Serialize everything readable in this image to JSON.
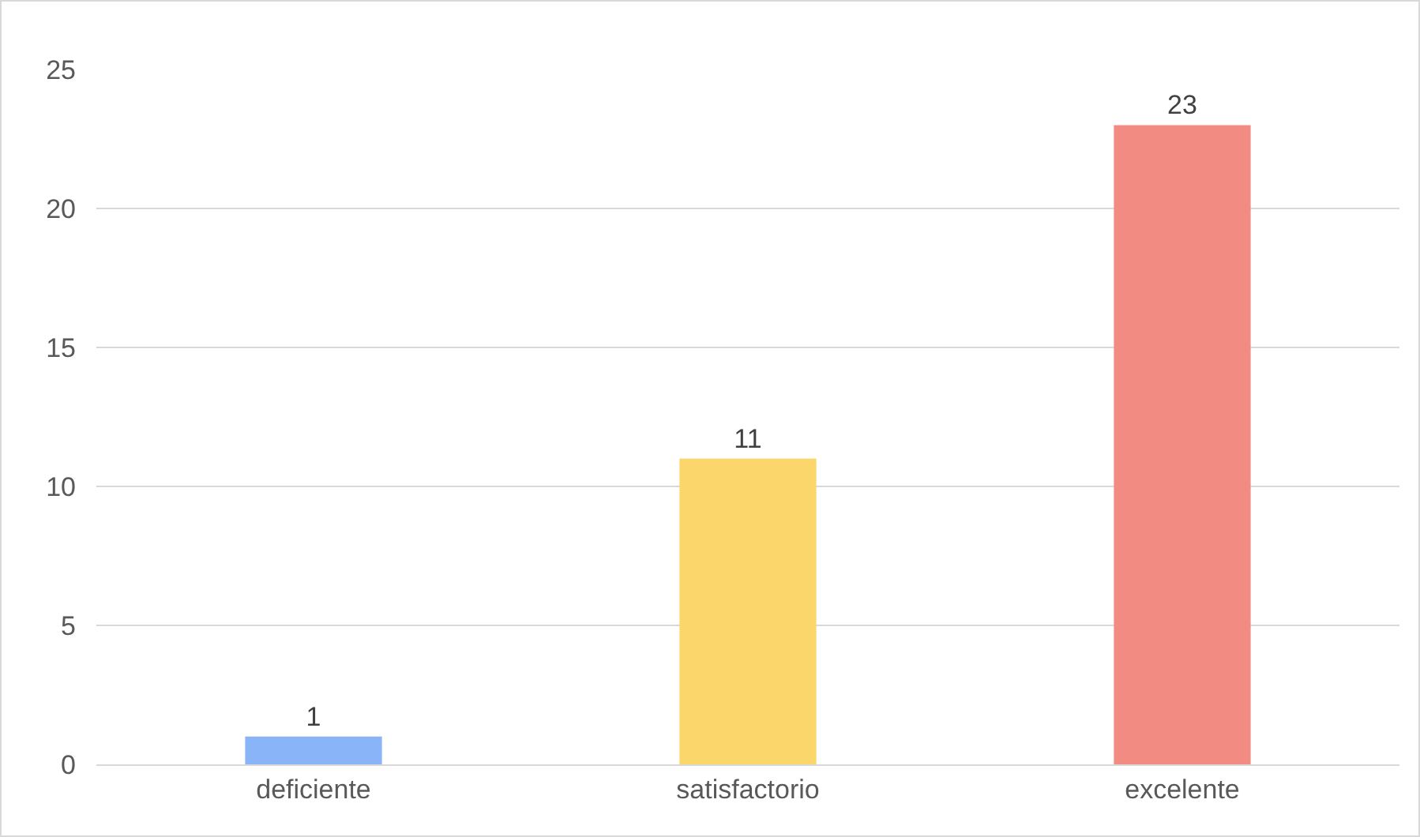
{
  "chart_data": {
    "type": "bar",
    "categories": [
      "deficiente",
      "satisfactorio",
      "excelente"
    ],
    "values": [
      1,
      11,
      23
    ],
    "colors": [
      "#8ab4f8",
      "#fbd66a",
      "#f28b82"
    ],
    "ylim": [
      0,
      25
    ],
    "yticks": [
      0,
      5,
      10,
      15,
      20,
      25
    ],
    "grid": "y",
    "data_labels": true
  }
}
